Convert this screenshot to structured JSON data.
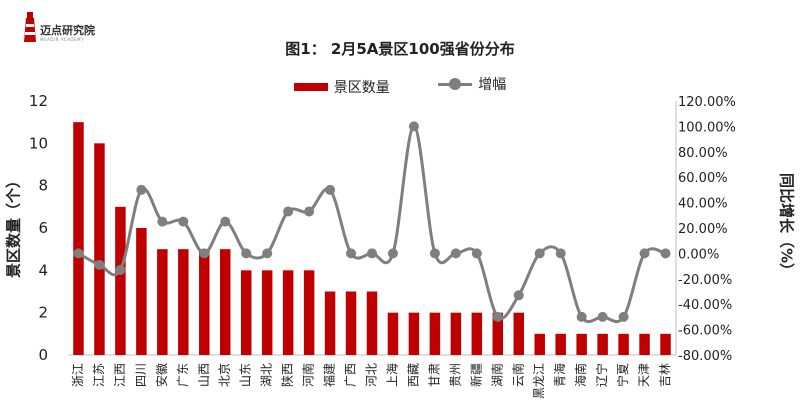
{
  "brand": {
    "name": "迈点研究院",
    "subtitle": "MEADIN ACADEMY"
  },
  "colors": {
    "bar": "#c00000",
    "line": "#7f7f7f",
    "axis": "#bfbfbf",
    "text": "#222222"
  },
  "chart_data": {
    "type": "bar+line",
    "title": "图1： 2月5A景区100强省份分布",
    "ylabel": "景区数量（个）",
    "y2label": "同比增长（%）",
    "ylim": [
      0,
      12
    ],
    "y2lim": [
      -80,
      120
    ],
    "yticks": [
      0,
      2,
      4,
      6,
      8,
      10,
      12
    ],
    "y2ticks": [
      "-80.00%",
      "-60.00%",
      "-40.00%",
      "-20.00%",
      "0.00%",
      "20.00%",
      "40.00%",
      "60.00%",
      "80.00%",
      "100.00%",
      "120.00%"
    ],
    "legend": [
      "景区数量",
      "增幅"
    ],
    "legend_position": "top-center",
    "categories": [
      "浙江",
      "江苏",
      "江西",
      "四川",
      "安徽",
      "广东",
      "山西",
      "北京",
      "山东",
      "湖北",
      "陕西",
      "河南",
      "福建",
      "广西",
      "河北",
      "上海",
      "西藏",
      "甘肃",
      "贵州",
      "新疆",
      "湖南",
      "云南",
      "黑龙江",
      "青海",
      "海南",
      "辽宁",
      "宁夏",
      "天津",
      "吉林"
    ],
    "series": [
      {
        "name": "景区数量",
        "kind": "bar",
        "axis": "left",
        "values": [
          11,
          10,
          7,
          6,
          5,
          5,
          5,
          5,
          4,
          4,
          4,
          4,
          3,
          3,
          3,
          2,
          2,
          2,
          2,
          2,
          2,
          2,
          1,
          1,
          1,
          1,
          1,
          1,
          1
        ]
      },
      {
        "name": "增幅",
        "kind": "line",
        "axis": "right",
        "values": [
          0,
          -9,
          -13,
          50,
          25,
          25,
          0,
          25,
          0,
          0,
          33,
          33,
          50,
          0,
          0,
          0,
          100,
          0,
          0,
          0,
          -50,
          -33,
          0,
          0,
          -50,
          -50,
          -50,
          0,
          0
        ]
      }
    ],
    "grid": false
  }
}
